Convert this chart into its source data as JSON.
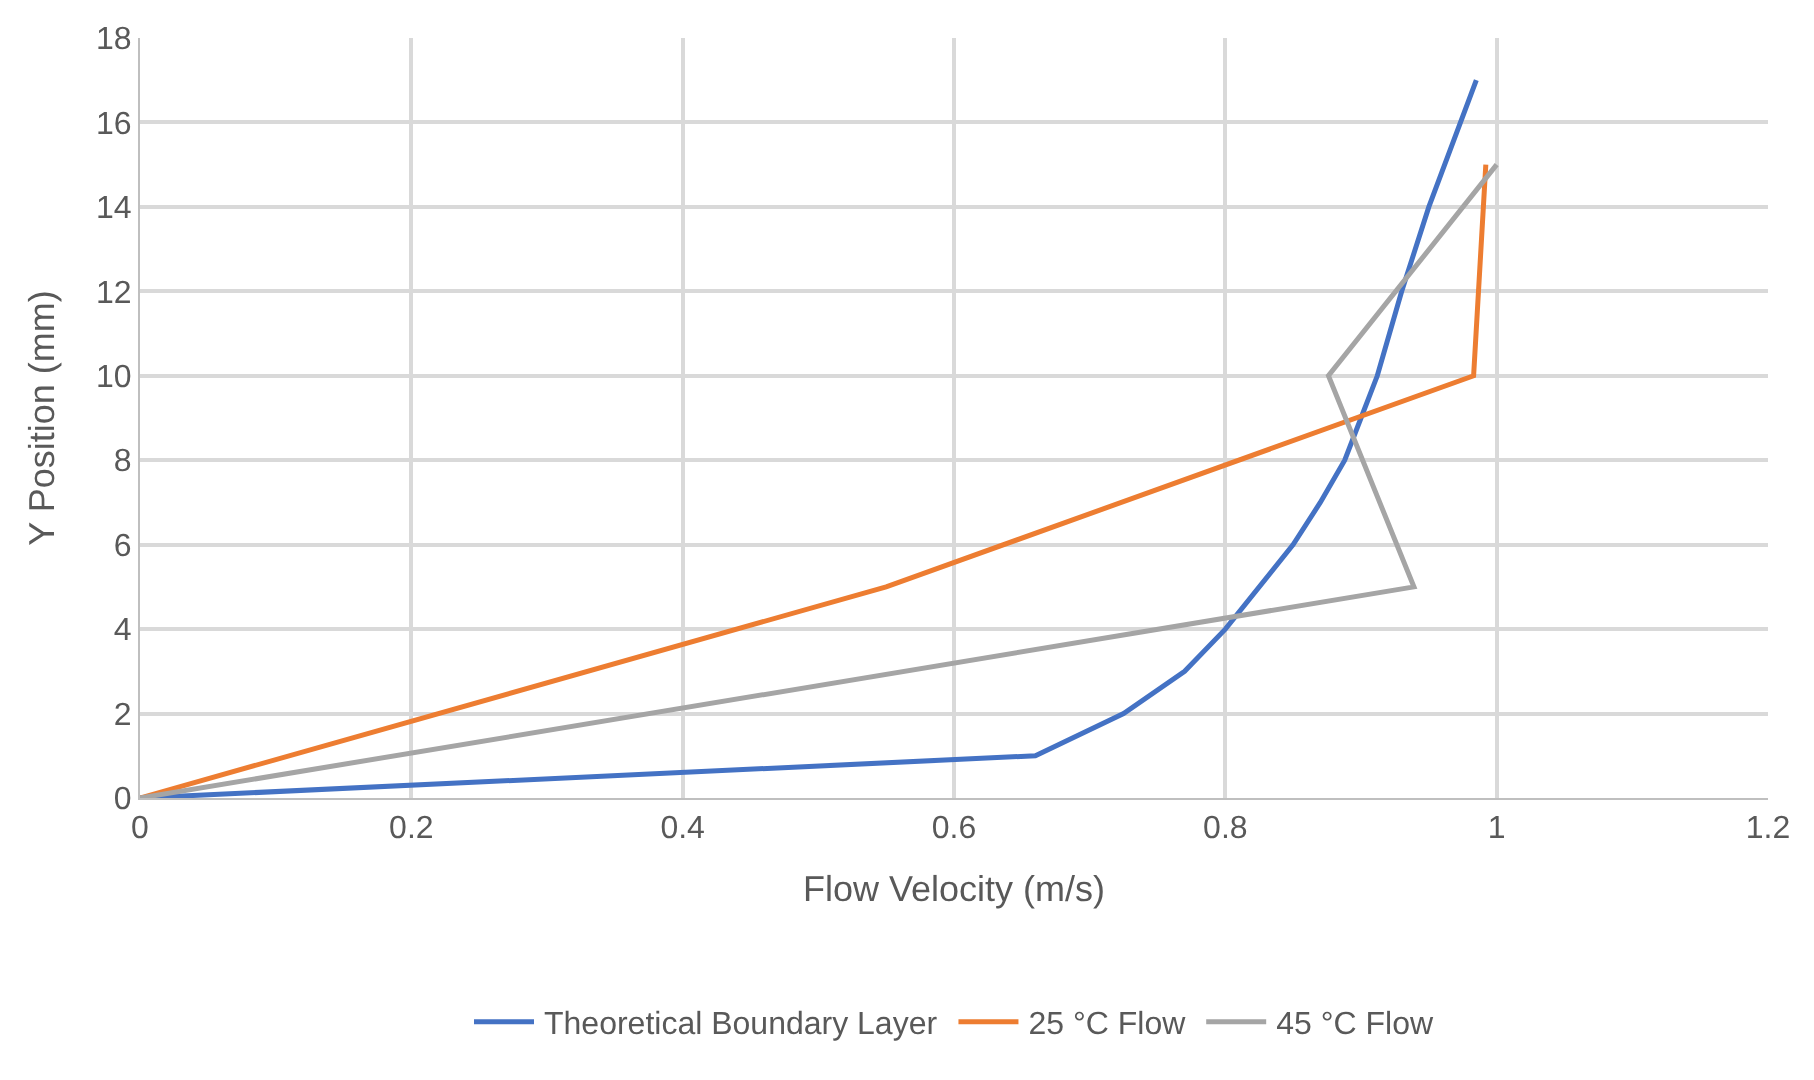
{
  "chart_data": {
    "type": "line",
    "xlabel": "Flow Velocity (m/s)",
    "ylabel": "Y Position (mm)",
    "xlim": [
      0,
      1.2
    ],
    "xticks": [
      0,
      0.2,
      0.4,
      0.6,
      0.8,
      1,
      1.2
    ],
    "ylim": [
      0,
      18
    ],
    "yticks": [
      0,
      2,
      4,
      6,
      8,
      10,
      12,
      14,
      16,
      18
    ],
    "grid": true,
    "legend": "bottom",
    "marker": "none",
    "line_style": "solid",
    "series": [
      {
        "name": "Theoretical Boundary Layer",
        "color": "#4472c4",
        "x": [
          0,
          0.66,
          0.725,
          0.77,
          0.8,
          0.85,
          0.87,
          0.888,
          0.9,
          0.912,
          0.93,
          0.95,
          0.985
        ],
        "values": [
          0,
          1,
          2,
          3,
          4,
          6,
          7,
          8,
          9,
          10,
          12,
          14,
          17
        ]
      },
      {
        "name": "25 °C Flow",
        "color": "#ed7d31",
        "x": [
          0,
          0.55,
          0.983,
          0.992
        ],
        "values": [
          0,
          5,
          10,
          15
        ]
      },
      {
        "name": "45 °C Flow",
        "color": "#a5a5a5",
        "x": [
          0,
          0.939,
          0.876,
          1.0
        ],
        "values": [
          0,
          5,
          10,
          15
        ]
      }
    ]
  }
}
